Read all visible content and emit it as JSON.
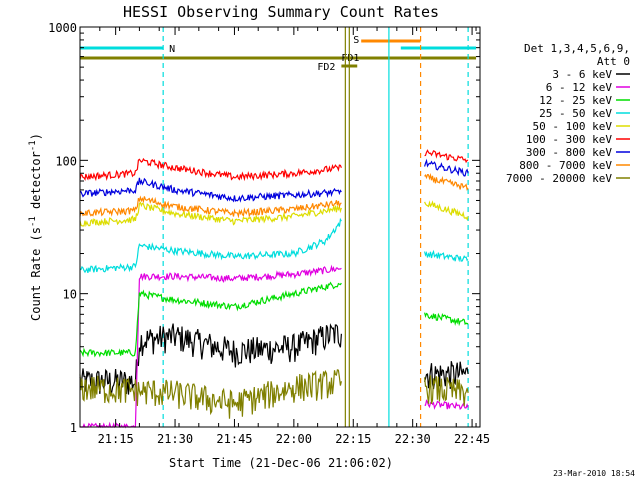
{
  "chart_data": {
    "type": "line",
    "title": "HESSI Observing Summary Count Rates",
    "xlabel": "Start Time (21-Dec-06 21:06:02)",
    "ylabel_main": "Count Rate (s",
    "ylabel_sup1": "-1",
    "ylabel_mid": " detector",
    "ylabel_sup2": "-1",
    "ylabel_end": ")",
    "yscale": "log",
    "ylim": [
      1,
      1000
    ],
    "xlim": [
      "21:06",
      "22:47"
    ],
    "x_ticks": [
      "21:15",
      "21:30",
      "21:45",
      "22:00",
      "22:15",
      "22:30",
      "22:45"
    ],
    "y_ticks": [
      "1",
      "10",
      "100",
      "1000"
    ],
    "legend_header": [
      "Det 1,3,4,5,6,9,",
      "Att 0"
    ],
    "legend_position": "right",
    "series": [
      {
        "name": "3 - 6 keV",
        "color": "#000000",
        "segments": [
          {
            "x": [
              "21:06",
              "21:20",
              "21:21",
              "21:30",
              "21:45",
              "22:00",
              "22:10",
              "22:12"
            ],
            "y": [
              2.2,
              2.2,
              4.5,
              4.8,
              3.7,
              4.0,
              5.0,
              5.0
            ]
          },
          {
            "x": [
              "22:33",
              "22:44"
            ],
            "y": [
              2.5,
              2.5
            ]
          }
        ]
      },
      {
        "name": "6 - 12 keV",
        "color": "#e000e0",
        "segments": [
          {
            "x": [
              "21:06",
              "21:20",
              "21:21",
              "21:30",
              "21:45",
              "22:00",
              "22:12"
            ],
            "y": [
              1.0,
              1.0,
              13.5,
              13.5,
              13.0,
              14.0,
              15.5
            ]
          },
          {
            "x": [
              "22:33",
              "22:44"
            ],
            "y": [
              1.5,
              1.4
            ]
          }
        ]
      },
      {
        "name": "12 - 25 keV",
        "color": "#00dd00",
        "segments": [
          {
            "x": [
              "21:06",
              "21:20",
              "21:21",
              "21:30",
              "21:45",
              "22:00",
              "22:12"
            ],
            "y": [
              3.6,
              3.6,
              10.0,
              9.0,
              8.0,
              10.0,
              12.0
            ]
          },
          {
            "x": [
              "22:33",
              "22:44"
            ],
            "y": [
              7.0,
              6.0
            ]
          }
        ]
      },
      {
        "name": "25 - 50 keV",
        "color": "#00dddd",
        "segments": [
          {
            "x": [
              "21:06",
              "21:20",
              "21:21",
              "21:30",
              "21:45",
              "22:00",
              "22:08",
              "22:12"
            ],
            "y": [
              15.0,
              16.0,
              23.0,
              21.0,
              19.0,
              20.0,
              25.0,
              35.0
            ]
          },
          {
            "x": [
              "22:33",
              "22:44"
            ],
            "y": [
              20.0,
              18.0
            ]
          }
        ]
      },
      {
        "name": "50 - 100 keV",
        "color": "#dddd00",
        "segments": [
          {
            "x": [
              "21:06",
              "21:20",
              "21:21",
              "21:30",
              "21:45",
              "22:00",
              "22:12"
            ],
            "y": [
              34.0,
              36.0,
              46.0,
              40.0,
              35.0,
              38.0,
              44.0
            ]
          },
          {
            "x": [
              "22:33",
              "22:44"
            ],
            "y": [
              48.0,
              38.0
            ]
          }
        ]
      },
      {
        "name": "100 - 300 keV",
        "color": "#ff0000",
        "segments": [
          {
            "x": [
              "21:06",
              "21:20",
              "21:21",
              "21:30",
              "21:45",
              "22:00",
              "22:12"
            ],
            "y": [
              75.0,
              80.0,
              100.0,
              88.0,
              75.0,
              80.0,
              88.0
            ]
          },
          {
            "x": [
              "22:33",
              "22:44"
            ],
            "y": [
              115.0,
              100.0
            ]
          }
        ]
      },
      {
        "name": "300 - 800 keV",
        "color": "#0000dd",
        "segments": [
          {
            "x": [
              "21:06",
              "21:20",
              "21:21",
              "21:30",
              "21:45",
              "22:00",
              "22:12"
            ],
            "y": [
              56.0,
              60.0,
              70.0,
              60.0,
              52.0,
              55.0,
              58.0
            ]
          },
          {
            "x": [
              "22:33",
              "22:44"
            ],
            "y": [
              95.0,
              80.0
            ]
          }
        ]
      },
      {
        "name": "800 - 7000 keV",
        "color": "#ff8800",
        "segments": [
          {
            "x": [
              "21:06",
              "21:20",
              "21:21",
              "21:30",
              "21:45",
              "22:00",
              "22:12"
            ],
            "y": [
              40.0,
              42.0,
              52.0,
              45.0,
              40.0,
              43.0,
              48.0
            ]
          },
          {
            "x": [
              "22:33",
              "22:44"
            ],
            "y": [
              75.0,
              62.0
            ]
          }
        ]
      },
      {
        "name": "7000 - 20000 keV",
        "color": "#808000",
        "segments": [
          {
            "x": [
              "21:06",
              "21:30",
              "21:45",
              "22:00",
              "22:12"
            ],
            "y": [
              2.0,
              1.8,
              1.5,
              2.0,
              2.2
            ]
          },
          {
            "x": [
              "22:33",
              "22:44"
            ],
            "y": [
              2.0,
              1.8
            ]
          }
        ]
      }
    ],
    "flag_bars": [
      {
        "label": "N",
        "color": "#00dddd",
        "segments": [
          [
            "21:06",
            "21:27"
          ],
          [
            "22:27",
            "22:46"
          ]
        ]
      },
      {
        "label": "S",
        "color": "#ff8800",
        "segments": [
          [
            "22:17",
            "22:32"
          ]
        ]
      },
      {
        "label": "FD1",
        "color": "#808000",
        "segments": [
          [
            "21:06",
            "22:46"
          ]
        ]
      },
      {
        "label": "FD2",
        "color": "#808000",
        "segments": [
          [
            "22:12",
            "22:16"
          ]
        ]
      }
    ],
    "vertical_lines": [
      {
        "x": "21:27",
        "color": "#00dddd",
        "style": "dashed"
      },
      {
        "x": "22:13",
        "color": "#808000",
        "style": "solid"
      },
      {
        "x": "22:14",
        "color": "#808000",
        "style": "solid"
      },
      {
        "x": "22:24",
        "color": "#00dddd",
        "style": "solid"
      },
      {
        "x": "22:32",
        "color": "#ff8800",
        "style": "dashed"
      },
      {
        "x": "22:44",
        "color": "#00dddd",
        "style": "dashed"
      }
    ]
  },
  "footer_timestamp": "23-Mar-2010 18:54"
}
